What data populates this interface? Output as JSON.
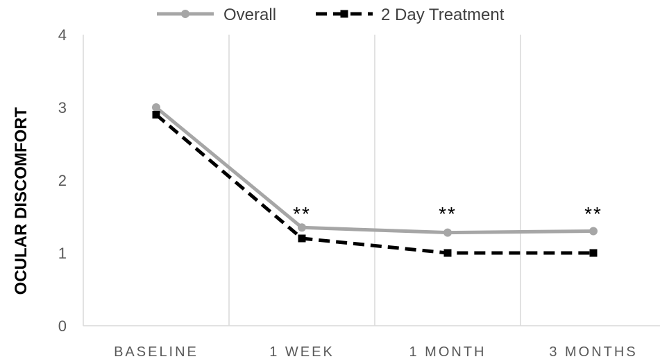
{
  "chart_data": {
    "type": "line",
    "title": "",
    "xlabel": "",
    "ylabel": "OCULAR DISCOMFORT",
    "categories": [
      "BASELINE",
      "1 WEEK",
      "1 MONTH",
      "3 MONTHS"
    ],
    "ylim": [
      0,
      4
    ],
    "yticks": [
      0,
      1,
      2,
      3,
      4
    ],
    "grid": "vertical",
    "legend_position": "top",
    "series": [
      {
        "name": "Overall",
        "values": [
          3.0,
          1.35,
          1.28,
          1.3
        ],
        "color": "#a6a6a6",
        "style": "solid"
      },
      {
        "name": "2 Day Treatment",
        "values": [
          2.9,
          1.2,
          1.0,
          1.0
        ],
        "color": "#000000",
        "style": "dashed"
      }
    ],
    "annotations": [
      {
        "category": "1 WEEK",
        "text": "**"
      },
      {
        "category": "1 MONTH",
        "text": "**"
      },
      {
        "category": "3 MONTHS",
        "text": "**"
      }
    ]
  }
}
